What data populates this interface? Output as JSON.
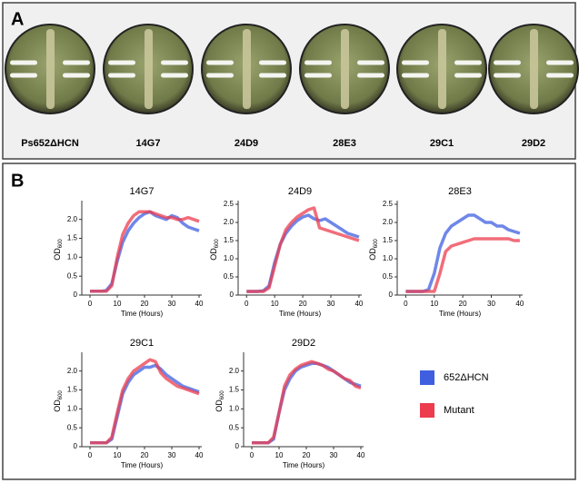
{
  "panel_a": {
    "label": "A",
    "plates": [
      "Ps652ΔHCN",
      "14G7",
      "24D9",
      "28E3",
      "29C1",
      "29D2"
    ]
  },
  "panel_b": {
    "label": "B"
  },
  "chart_data": [
    {
      "type": "line",
      "title": "14G7",
      "xlabel": "Time (Hours)",
      "ylabel": "OD",
      "ylabel_sub": "600",
      "x": [
        0,
        2,
        4,
        6,
        8,
        10,
        12,
        14,
        16,
        18,
        20,
        22,
        24,
        26,
        28,
        30,
        32,
        34,
        36,
        38,
        40
      ],
      "xlim": [
        -3,
        41
      ],
      "xticks": [
        0,
        10,
        20,
        30,
        40
      ],
      "ylim": [
        0,
        2.4
      ],
      "yticks": [
        0,
        0.5,
        {
          "value": 1,
          "label": "1.0"
        },
        1.5,
        {
          "value": 2,
          "label": "2.0"
        }
      ],
      "series": [
        {
          "name": "652ΔHCN",
          "color": "#3f5fe0",
          "values": [
            0.1,
            0.1,
            0.1,
            0.12,
            0.3,
            0.9,
            1.4,
            1.7,
            1.9,
            2.05,
            2.15,
            2.2,
            2.1,
            2.05,
            2.0,
            2.1,
            2.05,
            1.9,
            1.8,
            1.75,
            1.7
          ]
        },
        {
          "name": "Mutant",
          "color": "#ec3c4e",
          "values": [
            0.1,
            0.1,
            0.1,
            0.1,
            0.25,
            1.0,
            1.6,
            1.9,
            2.1,
            2.2,
            2.2,
            2.2,
            2.15,
            2.1,
            2.05,
            2.05,
            2.0,
            2.0,
            2.05,
            2.0,
            1.95
          ]
        }
      ]
    },
    {
      "type": "line",
      "title": "24D9",
      "xlabel": "Time (Hours)",
      "ylabel": "OD",
      "ylabel_sub": "600",
      "x": [
        0,
        2,
        4,
        6,
        8,
        10,
        12,
        14,
        16,
        18,
        20,
        22,
        24,
        26,
        28,
        30,
        32,
        34,
        36,
        38,
        40
      ],
      "xlim": [
        -3,
        41
      ],
      "xticks": [
        0,
        10,
        20,
        30,
        40
      ],
      "ylim": [
        0,
        2.5
      ],
      "yticks": [
        0,
        0.5,
        {
          "value": 1,
          "label": "1.0"
        },
        1.5,
        {
          "value": 2,
          "label": "2.0"
        },
        2.5
      ],
      "series": [
        {
          "name": "652ΔHCN",
          "color": "#3f5fe0",
          "values": [
            0.1,
            0.1,
            0.1,
            0.12,
            0.25,
            0.9,
            1.4,
            1.7,
            1.9,
            2.05,
            2.15,
            2.2,
            2.1,
            2.05,
            2.1,
            2.0,
            1.9,
            1.8,
            1.7,
            1.65,
            1.6
          ]
        },
        {
          "name": "Mutant",
          "color": "#ec3c4e",
          "values": [
            0.1,
            0.1,
            0.1,
            0.1,
            0.2,
            0.8,
            1.4,
            1.8,
            2.0,
            2.15,
            2.25,
            2.35,
            2.4,
            1.85,
            1.8,
            1.75,
            1.7,
            1.65,
            1.6,
            1.55,
            1.5
          ]
        }
      ]
    },
    {
      "type": "line",
      "title": "28E3",
      "xlabel": "Time (Hours)",
      "ylabel": "OD",
      "ylabel_sub": "600",
      "x": [
        0,
        2,
        4,
        6,
        8,
        10,
        12,
        14,
        16,
        18,
        20,
        22,
        24,
        26,
        28,
        30,
        32,
        34,
        36,
        38,
        40
      ],
      "xlim": [
        -3,
        41
      ],
      "xticks": [
        0,
        10,
        20,
        30,
        40
      ],
      "ylim": [
        0,
        2.5
      ],
      "yticks": [
        0,
        0.5,
        {
          "value": 1,
          "label": "1.0"
        },
        1.5,
        {
          "value": 2,
          "label": "2.0"
        },
        2.5
      ],
      "series": [
        {
          "name": "652ΔHCN",
          "color": "#3f5fe0",
          "values": [
            0.1,
            0.1,
            0.1,
            0.1,
            0.15,
            0.6,
            1.3,
            1.7,
            1.9,
            2.0,
            2.1,
            2.2,
            2.2,
            2.1,
            2.0,
            2.0,
            1.9,
            1.9,
            1.8,
            1.75,
            1.7
          ]
        },
        {
          "name": "Mutant",
          "color": "#ec3c4e",
          "values": [
            0.1,
            0.1,
            0.1,
            0.1,
            0.1,
            0.1,
            0.6,
            1.2,
            1.35,
            1.4,
            1.45,
            1.5,
            1.55,
            1.55,
            1.55,
            1.55,
            1.55,
            1.55,
            1.55,
            1.5,
            1.5
          ]
        }
      ]
    },
    {
      "type": "line",
      "title": "29C1",
      "xlabel": "Time (Hours)",
      "ylabel": "OD",
      "ylabel_sub": "600",
      "x": [
        0,
        2,
        4,
        6,
        8,
        10,
        12,
        14,
        16,
        18,
        20,
        22,
        24,
        26,
        28,
        30,
        32,
        34,
        36,
        38,
        40
      ],
      "xlim": [
        -3,
        41
      ],
      "xticks": [
        0,
        10,
        20,
        30,
        40
      ],
      "ylim": [
        0,
        2.4
      ],
      "yticks": [
        0,
        0.5,
        {
          "value": 1,
          "label": "1.0"
        },
        1.5,
        {
          "value": 2,
          "label": "2.0"
        }
      ],
      "series": [
        {
          "name": "652ΔHCN",
          "color": "#3f5fe0",
          "values": [
            0.1,
            0.1,
            0.1,
            0.1,
            0.2,
            0.8,
            1.4,
            1.7,
            1.9,
            2.0,
            2.1,
            2.1,
            2.15,
            2.05,
            1.9,
            1.8,
            1.7,
            1.6,
            1.55,
            1.5,
            1.45
          ]
        },
        {
          "name": "Mutant",
          "color": "#ec3c4e",
          "values": [
            0.1,
            0.1,
            0.1,
            0.1,
            0.25,
            0.9,
            1.5,
            1.8,
            2.0,
            2.1,
            2.2,
            2.3,
            2.25,
            1.95,
            1.8,
            1.7,
            1.6,
            1.55,
            1.5,
            1.45,
            1.4
          ]
        }
      ]
    },
    {
      "type": "line",
      "title": "29D2",
      "xlabel": "Time (Hours)",
      "ylabel": "OD",
      "ylabel_sub": "600",
      "x": [
        0,
        2,
        4,
        6,
        8,
        10,
        12,
        14,
        16,
        18,
        20,
        22,
        24,
        26,
        28,
        30,
        32,
        34,
        36,
        38,
        40
      ],
      "xlim": [
        -3,
        41
      ],
      "xticks": [
        0,
        10,
        20,
        30,
        40
      ],
      "ylim": [
        0,
        2.4
      ],
      "yticks": [
        0,
        0.5,
        {
          "value": 1,
          "label": "1.0"
        },
        1.5,
        {
          "value": 2,
          "label": "2.0"
        }
      ],
      "series": [
        {
          "name": "652ΔHCN",
          "color": "#3f5fe0",
          "values": [
            0.1,
            0.1,
            0.1,
            0.1,
            0.2,
            0.9,
            1.5,
            1.8,
            2.0,
            2.1,
            2.15,
            2.2,
            2.2,
            2.15,
            2.1,
            2.0,
            1.9,
            1.8,
            1.7,
            1.65,
            1.6
          ]
        },
        {
          "name": "Mutant",
          "color": "#ec3c4e",
          "values": [
            0.1,
            0.1,
            0.1,
            0.1,
            0.25,
            0.9,
            1.6,
            1.9,
            2.05,
            2.15,
            2.2,
            2.25,
            2.2,
            2.15,
            2.05,
            2.0,
            1.9,
            1.8,
            1.75,
            1.6,
            1.55
          ]
        }
      ]
    }
  ]
}
